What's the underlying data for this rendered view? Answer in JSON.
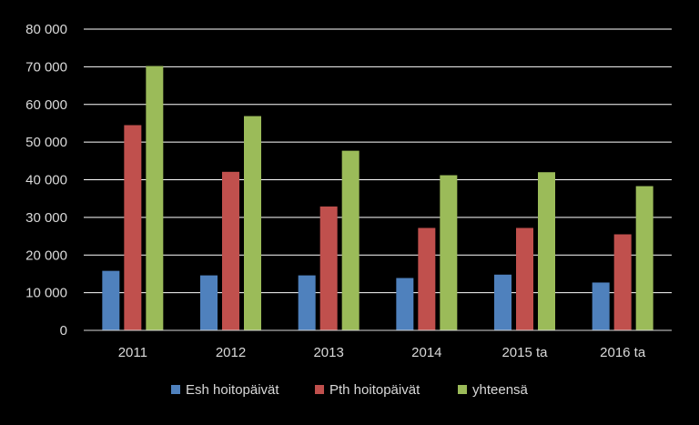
{
  "chart_data": {
    "type": "bar",
    "categories": [
      "2011",
      "2012",
      "2013",
      "2014",
      "2015 ta",
      "2016 ta"
    ],
    "series": [
      {
        "name": "Esh hoitopäivät",
        "color": "#4f81bd",
        "values": [
          15800,
          14600,
          14600,
          13900,
          14800,
          12700
        ]
      },
      {
        "name": "Pth hoitopäivät",
        "color": "#c0504d",
        "values": [
          54500,
          42100,
          32900,
          27200,
          27200,
          25500
        ]
      },
      {
        "name": "yhteensä",
        "color": "#9bbb59",
        "values": [
          70200,
          56900,
          47700,
          41200,
          42000,
          38300
        ]
      }
    ],
    "title": "",
    "xlabel": "",
    "ylabel": "",
    "ylim": [
      0,
      80000
    ],
    "yticks": [
      0,
      10000,
      20000,
      30000,
      40000,
      50000,
      60000,
      70000,
      80000
    ],
    "ytick_labels": [
      "0",
      "10 000",
      "20 000",
      "30 000",
      "40 000",
      "50 000",
      "60 000",
      "70 000",
      "80 000"
    ],
    "grid": true,
    "legend_position": "bottom",
    "background": "#000000",
    "gridline_color": "#ffffff",
    "text_color": "#d9d9d9"
  }
}
